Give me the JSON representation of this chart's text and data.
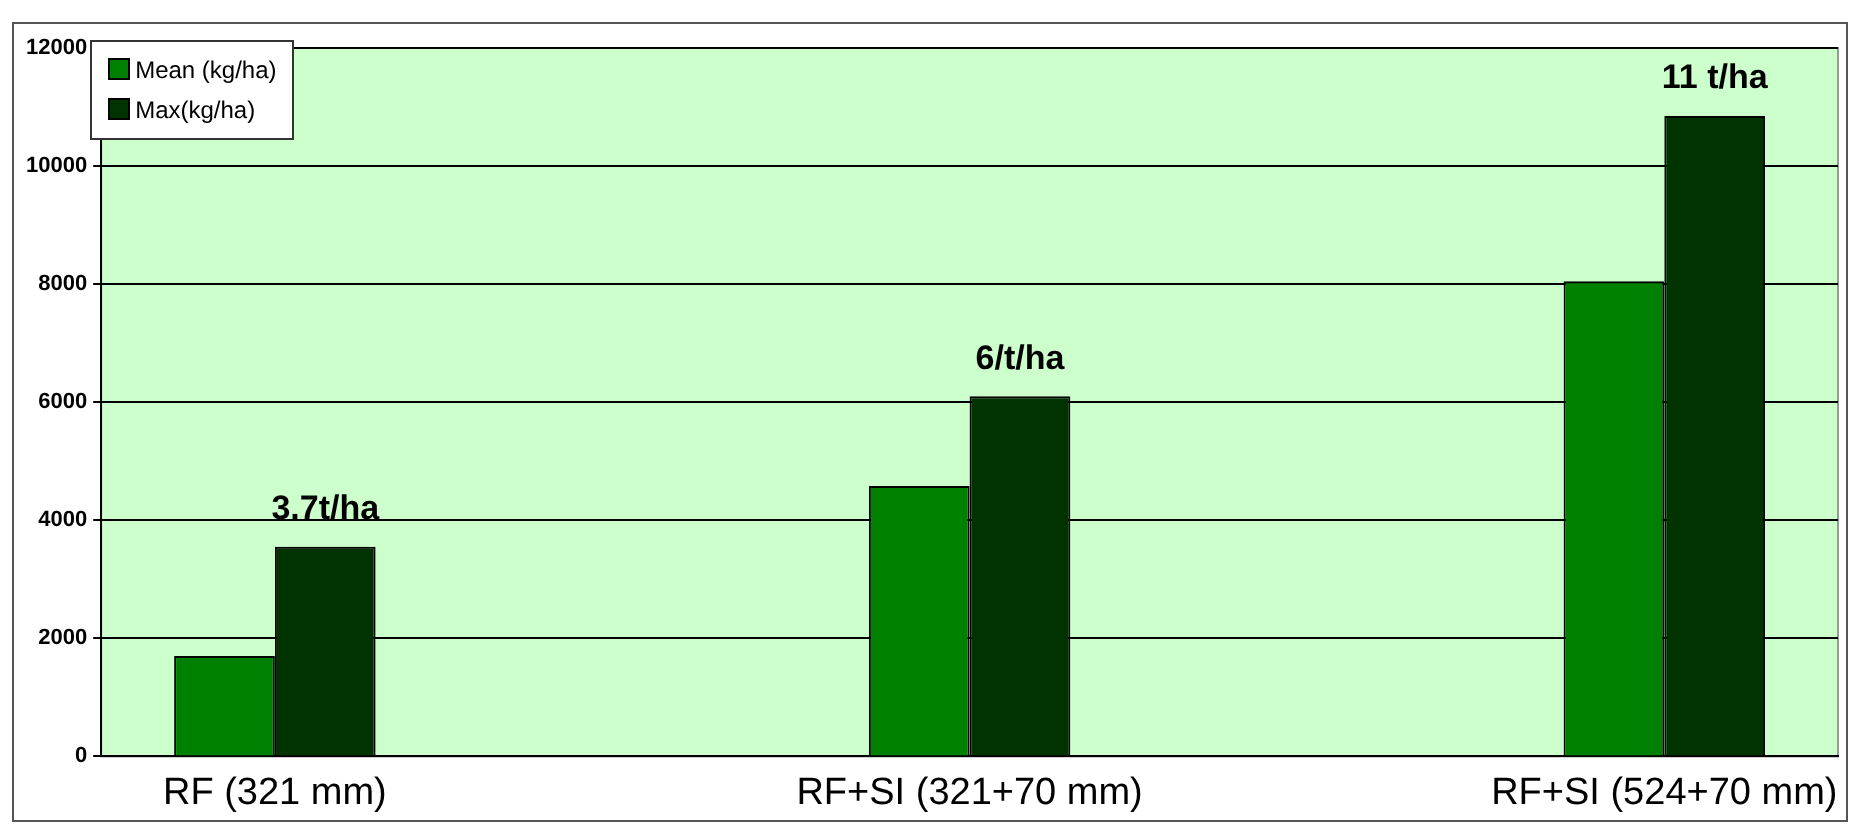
{
  "chart_data": {
    "type": "bar",
    "categories": [
      "RF (321 mm)",
      null,
      "RF+SI (321+70 mm)",
      null,
      "RF+SI (524+70 mm)"
    ],
    "series": [
      {
        "name": "Mean (kg/ha)",
        "color": "#008000",
        "values": [
          1700,
          null,
          4580,
          null,
          8050
        ]
      },
      {
        "name": "Max(kg/ha)",
        "color": "#003300",
        "values": [
          3550,
          null,
          6100,
          null,
          10850
        ]
      }
    ],
    "ylim": [
      0,
      12000
    ],
    "yticks": [
      0,
      2000,
      4000,
      6000,
      8000,
      10000,
      12000
    ],
    "grid": "y",
    "legend": "top left",
    "annotations": [
      "3.7t/ha",
      "6/t/ha",
      "11 t/ha"
    ]
  }
}
